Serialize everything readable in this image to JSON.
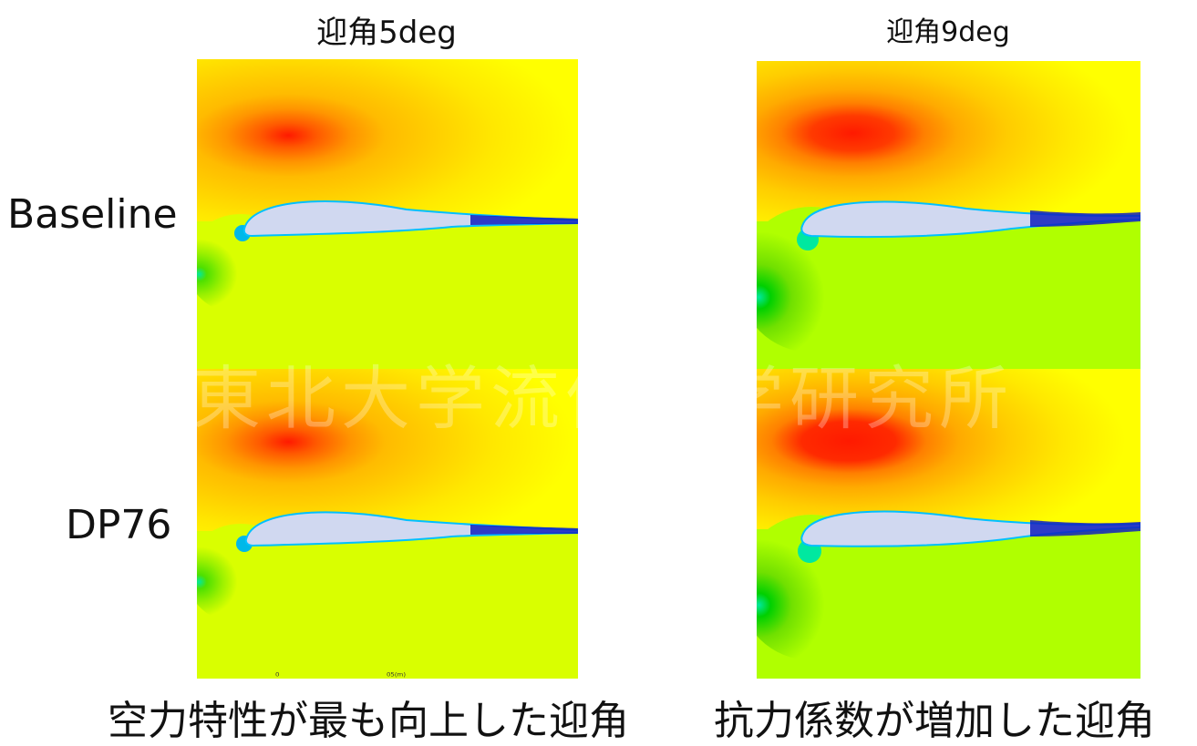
{
  "columns": [
    {
      "title": "迎角5deg",
      "caption": "空力特性が最も向上した迎角"
    },
    {
      "title": "迎角9deg",
      "caption": "抗力係数が増加した迎角"
    }
  ],
  "rows": [
    {
      "label": "Baseline"
    },
    {
      "label": "DP76"
    }
  ],
  "watermark": "東北大学流体科学研究所",
  "bottom_marks": [
    "⁰",
    "⁰⁵⁽ᵐ⁾"
  ],
  "colors": {
    "background_field": "#d9ff00",
    "upper_far": "#ffe800",
    "suction_mid": "#ffb000",
    "suction_peak": "#ff1a00",
    "lower_pressure": "#7fe000",
    "stagnation": "#00e8a0",
    "airfoil_fill": "#d0d8f0",
    "wake_core": "#1020c0"
  }
}
